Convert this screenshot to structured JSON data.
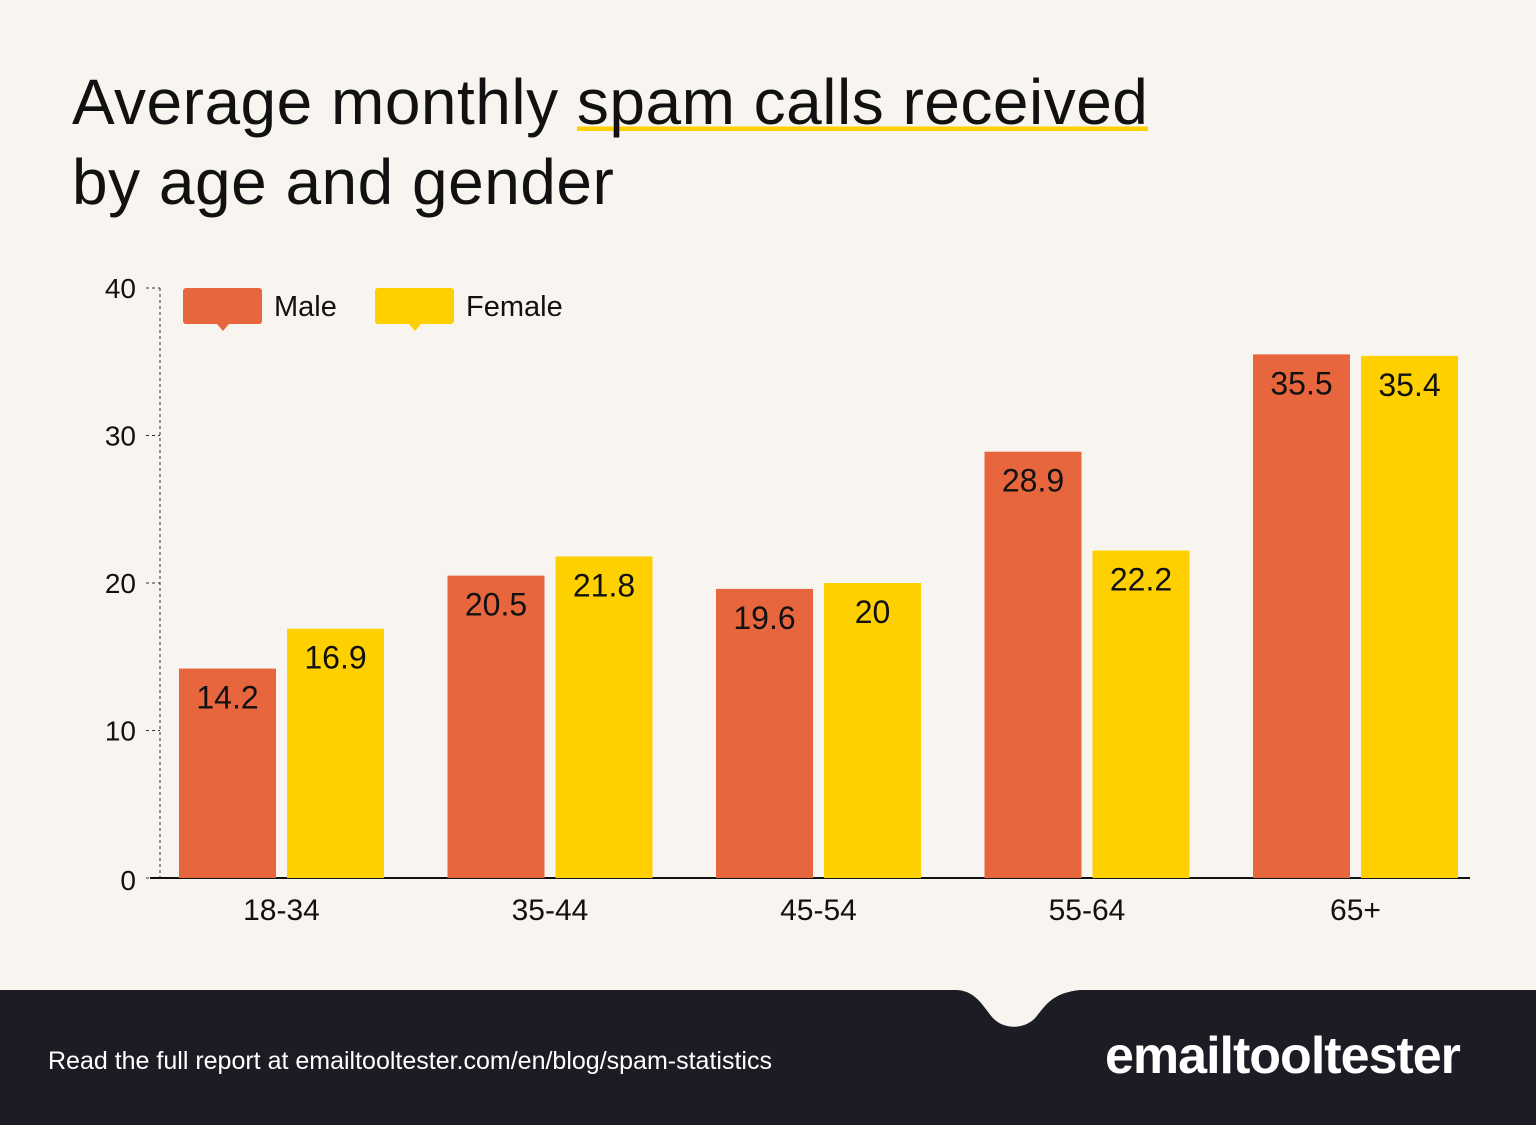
{
  "title": {
    "prefix": "Average monthly ",
    "highlight": "spam calls received",
    "line2": "by age and gender"
  },
  "chart_data": {
    "type": "bar",
    "title": "Average monthly spam calls received by age and gender",
    "categories": [
      "18-34",
      "35-44",
      "45-54",
      "55-64",
      "65+"
    ],
    "series": [
      {
        "name": "Male",
        "color": "#e8663d",
        "values": [
          14.2,
          20.5,
          19.6,
          28.9,
          35.5
        ]
      },
      {
        "name": "Female",
        "color": "#ffd000",
        "values": [
          16.9,
          21.8,
          20,
          22.2,
          35.4
        ]
      }
    ],
    "yticks": [
      0,
      10,
      20,
      30,
      40
    ],
    "ylim": [
      0,
      40
    ],
    "legend": "top-left",
    "grid": false
  },
  "footer": {
    "text": "Read the full report at emailtooltester.com/en/blog/spam-statistics",
    "logo": "emailtooltester"
  }
}
